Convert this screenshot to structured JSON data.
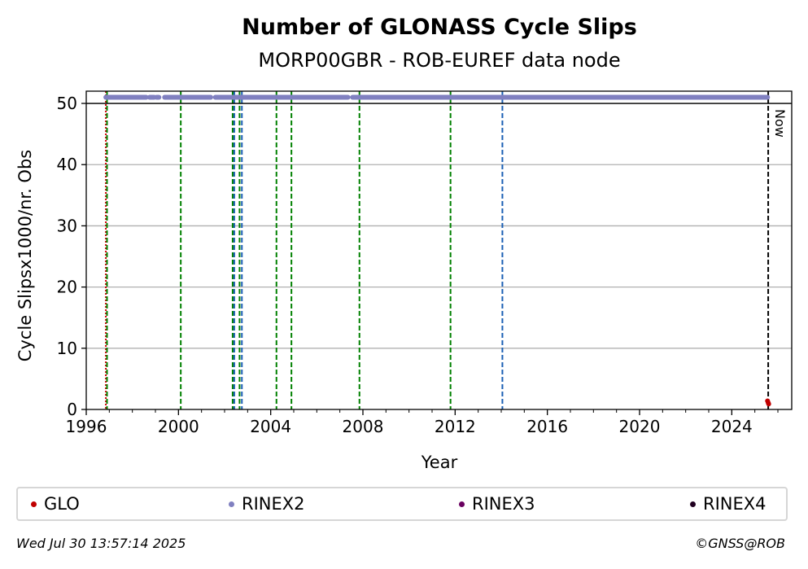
{
  "chart_data": {
    "type": "scatter",
    "title": "Number of GLONASS Cycle Slips",
    "subtitle": "MORP00GBR - ROB-EUREF data node",
    "xlabel": "Year",
    "ylabel": "Cycle Slipsx1000/nr. Obs",
    "xlim": [
      1996.0,
      2026.6
    ],
    "ylim": [
      0,
      52
    ],
    "x_ticks": [
      1996,
      2000,
      2004,
      2008,
      2012,
      2016,
      2020,
      2024
    ],
    "x_tick_labels": [
      "1996",
      "2000",
      "2004",
      "2008",
      "2012",
      "2016",
      "2020",
      "2024"
    ],
    "y_ticks": [
      0,
      10,
      20,
      30,
      40,
      50
    ],
    "y_tick_labels": [
      "0",
      "10",
      "20",
      "30",
      "40",
      "50"
    ],
    "grid": "horizontal",
    "reference_line_y": 50,
    "now_label": "Now",
    "now_x": 2025.58,
    "event_lines": [
      {
        "x": 1996.85,
        "color": "#cc0000",
        "style": "dotted"
      },
      {
        "x": 1996.9,
        "color": "#008000",
        "style": "dashed"
      },
      {
        "x": 2000.1,
        "color": "#008000",
        "style": "dashed"
      },
      {
        "x": 2002.35,
        "color": "#008000",
        "style": "dashed"
      },
      {
        "x": 2002.42,
        "color": "#1a5fb4",
        "style": "dashed"
      },
      {
        "x": 2002.65,
        "color": "#008000",
        "style": "dashed"
      },
      {
        "x": 2002.75,
        "color": "#1a5fb4",
        "style": "dashed"
      },
      {
        "x": 2004.25,
        "color": "#008000",
        "style": "dashed"
      },
      {
        "x": 2004.9,
        "color": "#008000",
        "style": "dashed"
      },
      {
        "x": 2007.85,
        "color": "#008000",
        "style": "dashed"
      },
      {
        "x": 2011.8,
        "color": "#008000",
        "style": "dashed"
      },
      {
        "x": 2014.05,
        "color": "#1a5fb4",
        "style": "dashed"
      },
      {
        "x": 2025.58,
        "color": "#000000",
        "style": "dashed"
      }
    ],
    "series": [
      {
        "name": "GLO",
        "color": "#c00000",
        "points": [
          [
            2025.55,
            1.4
          ],
          [
            2025.58,
            1.1
          ],
          [
            2025.6,
            0.9
          ]
        ]
      },
      {
        "name": "RINEX2",
        "color": "#8080c0",
        "level": 51,
        "segments": [
          [
            1996.85,
            1998.6
          ],
          [
            1998.75,
            1998.95
          ],
          [
            1999.05,
            1999.15
          ],
          [
            1999.4,
            2001.4
          ],
          [
            2001.6,
            2007.35
          ],
          [
            2007.55,
            2025.55
          ]
        ]
      },
      {
        "name": "RINEX3",
        "color": "#6a0060",
        "points": []
      },
      {
        "name": "RINEX4",
        "color": "#200020",
        "points": []
      }
    ]
  },
  "legend": [
    {
      "label": "GLO",
      "color": "#c00000"
    },
    {
      "label": "RINEX2",
      "color": "#8080c0"
    },
    {
      "label": "RINEX3",
      "color": "#6a0060"
    },
    {
      "label": "RINEX4",
      "color": "#200020"
    }
  ],
  "footer": {
    "timestamp": "Wed Jul 30 13:57:14 2025",
    "credit": "©GNSS@ROB"
  }
}
